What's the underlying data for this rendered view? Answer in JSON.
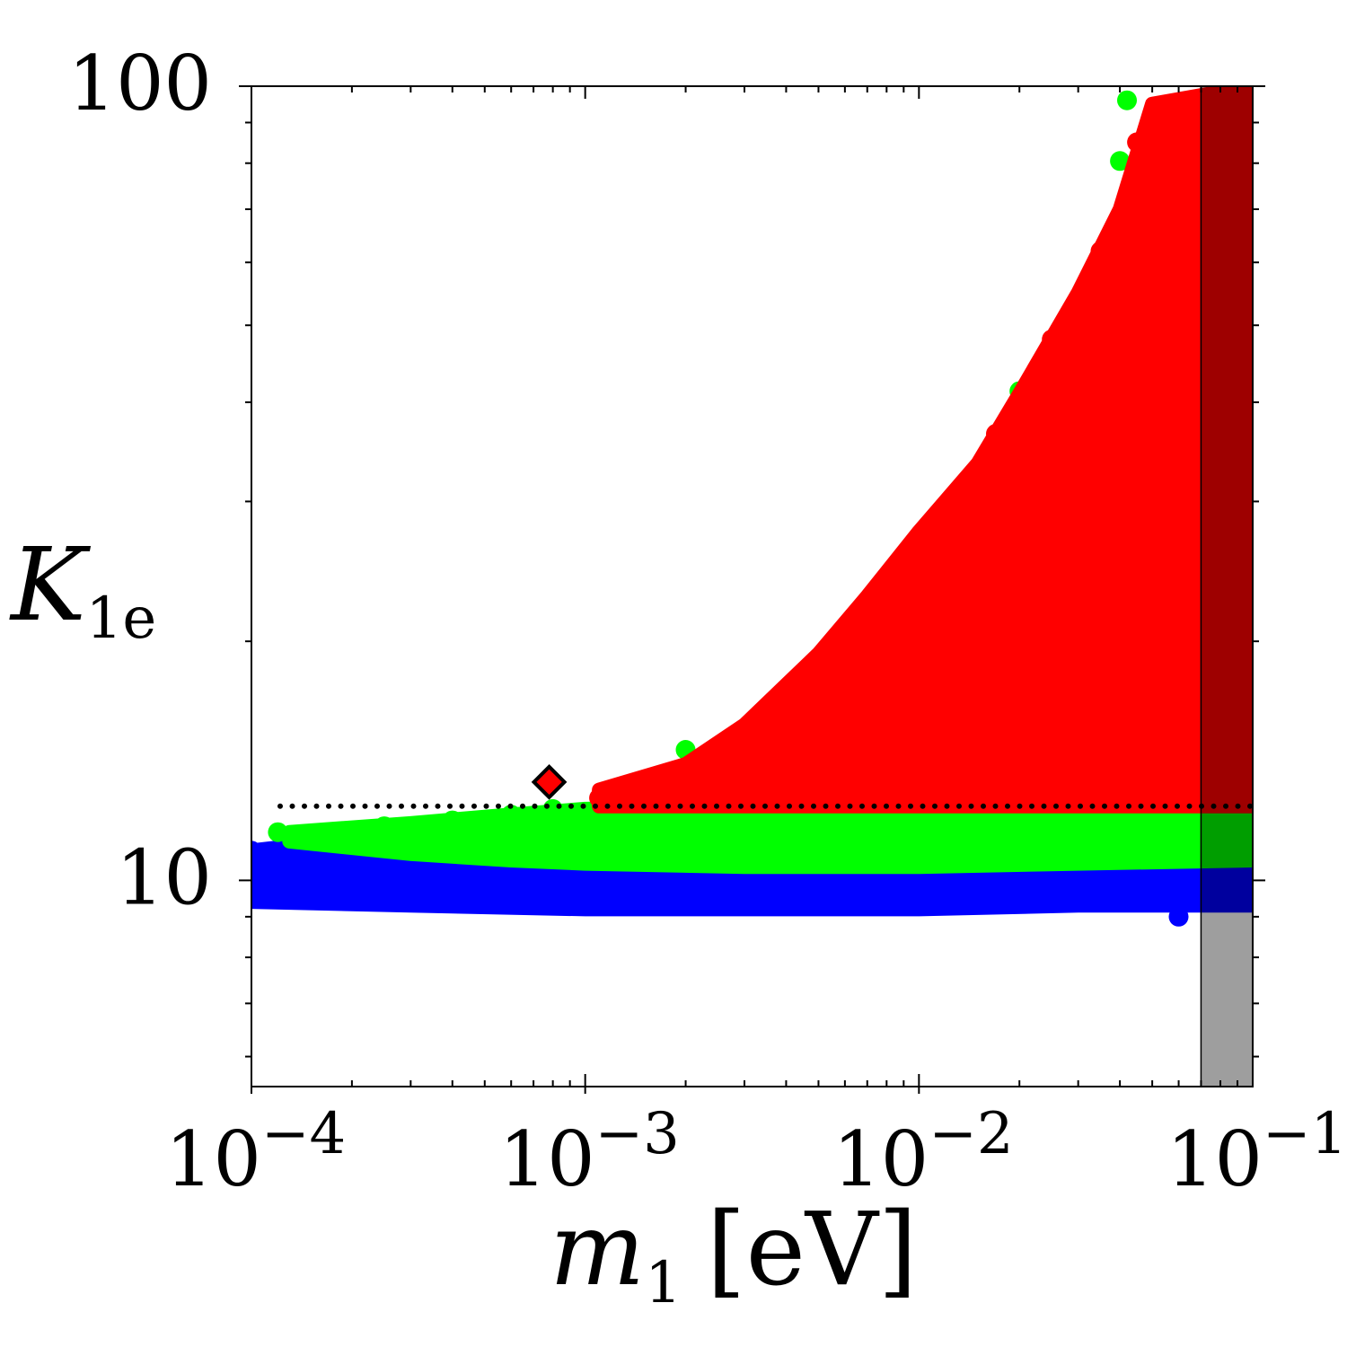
{
  "chart_data": {
    "type": "scatter",
    "title": "",
    "xlabel": {
      "symbol": "m",
      "subscript": "1",
      "unit": "[eV]"
    },
    "ylabel": {
      "symbol": "K",
      "subscript": "1e"
    },
    "xscale": "log",
    "yscale": "log",
    "xlim": [
      0.0001,
      0.1
    ],
    "ylim": [
      5.5,
      100
    ],
    "x_ticks": [
      {
        "value": 0.0001,
        "base": "10",
        "exp": "−4"
      },
      {
        "value": 0.001,
        "base": "10",
        "exp": "−3"
      },
      {
        "value": 0.01,
        "base": "10",
        "exp": "−2"
      },
      {
        "value": 0.1,
        "base": "10",
        "exp": "−1"
      }
    ],
    "y_ticks": [
      {
        "value": 10,
        "label": "10"
      },
      {
        "value": 100,
        "label": "100"
      }
    ],
    "grid": false,
    "legend": "none",
    "series": [
      {
        "color": "#0000ff",
        "region": {
          "x": [
            0.0001,
            0.0003,
            0.001,
            0.003,
            0.01,
            0.03,
            0.1
          ],
          "y_low": [
            9.4,
            9.3,
            9.2,
            9.2,
            9.2,
            9.3,
            9.3
          ],
          "y_high": [
            10.9,
            11.5,
            12.1,
            12.2,
            12.2,
            12.2,
            12.2
          ]
        },
        "edge_points": [
          [
            0.0001,
            10.9
          ],
          [
            0.0002,
            11.3
          ],
          [
            0.0004,
            11.7
          ],
          [
            0.0007,
            12.0
          ],
          [
            0.001,
            12.2
          ],
          [
            0.06,
            9.0
          ]
        ]
      },
      {
        "color": "#00ff00",
        "region": {
          "x": [
            0.00013,
            0.0003,
            0.0006,
            0.001,
            0.003,
            0.01,
            0.03,
            0.1
          ],
          "y_low": [
            11.2,
            10.8,
            10.6,
            10.5,
            10.4,
            10.4,
            10.5,
            10.6
          ],
          "y_high": [
            11.5,
            11.8,
            12.1,
            12.3,
            12.4,
            12.4,
            12.4,
            12.4
          ]
        },
        "edge_points": [
          [
            0.00012,
            11.5
          ],
          [
            0.00025,
            11.7
          ],
          [
            0.0004,
            11.9
          ],
          [
            0.0006,
            12.1
          ],
          [
            0.0008,
            12.3
          ],
          [
            0.002,
            14.6
          ],
          [
            0.004,
            17.0
          ],
          [
            0.007,
            22.3
          ],
          [
            0.02,
            41.3
          ],
          [
            0.04,
            80.5
          ],
          [
            0.042,
            96.0
          ]
        ]
      },
      {
        "color": "#ff0000",
        "region": {
          "x": [
            0.0011,
            0.002,
            0.003,
            0.005,
            0.007,
            0.01,
            0.015,
            0.02,
            0.03,
            0.04,
            0.05,
            0.1
          ],
          "y_low": [
            12.4,
            12.4,
            12.4,
            12.4,
            12.4,
            12.4,
            12.4,
            12.4,
            12.4,
            12.4,
            12.4,
            12.4
          ],
          "y_high": [
            13.0,
            14.0,
            15.7,
            19.3,
            22.8,
            27.5,
            33.5,
            41.0,
            55.0,
            70.0,
            95.0,
            100
          ]
        },
        "edge_points": [
          [
            0.0011,
            12.7
          ],
          [
            0.0015,
            13.2
          ],
          [
            0.0025,
            14.5
          ],
          [
            0.004,
            16.8
          ],
          [
            0.006,
            20.0
          ],
          [
            0.009,
            25.5
          ],
          [
            0.012,
            29.3
          ],
          [
            0.017,
            36.5
          ],
          [
            0.025,
            48.0
          ],
          [
            0.035,
            62.0
          ],
          [
            0.045,
            85.0
          ]
        ]
      }
    ],
    "reference_line": {
      "y": 12.4,
      "style": "dotted",
      "color": "#000000"
    },
    "marker": {
      "x": 0.00078,
      "y": 13.3,
      "shape": "diamond",
      "color": "#ff0000",
      "edge": "#000000"
    },
    "excluded_band": {
      "x_range": [
        0.07,
        0.1
      ],
      "color": "#000000",
      "opacity": 0.38
    }
  }
}
